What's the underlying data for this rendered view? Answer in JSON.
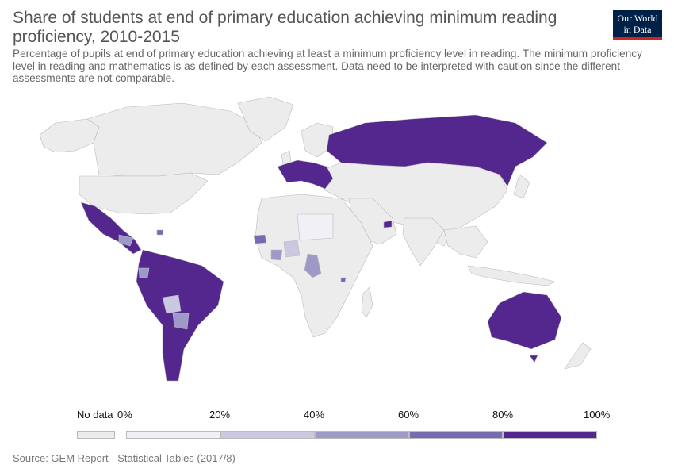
{
  "title": "Share of students at end of primary education achieving minimum reading proficiency, 2010-2015",
  "subtitle": "Percentage of pupils at end of primary education achieving at least a minimum proficiency level in reading. The minimum proficiency level in reading and mathematics is as defined by each assessment. Data need to be interpreted with caution since the different assessments are not comparable.",
  "logo": {
    "line1": "Our World",
    "line2": "in Data"
  },
  "legend": {
    "nodata_label": "No data",
    "tick_labels": [
      "0%",
      "20%",
      "40%",
      "60%",
      "80%",
      "100%"
    ],
    "colors": [
      "#f2f0f7",
      "#cbc9e2",
      "#9e9ac8",
      "#756bb1",
      "#54278f"
    ],
    "nodata_color": "#ececec"
  },
  "source": "Source: GEM Report - Statistical Tables (2017/8)",
  "map_colors": {
    "land_nodata": "#ececec",
    "border": "#bbbbbb",
    "bin_80_100": "#54278f",
    "bin_60_80": "#756bb1",
    "bin_40_60": "#9e9ac8",
    "bin_20_40": "#cbc9e2",
    "bin_0_20": "#f2f0f7"
  }
}
